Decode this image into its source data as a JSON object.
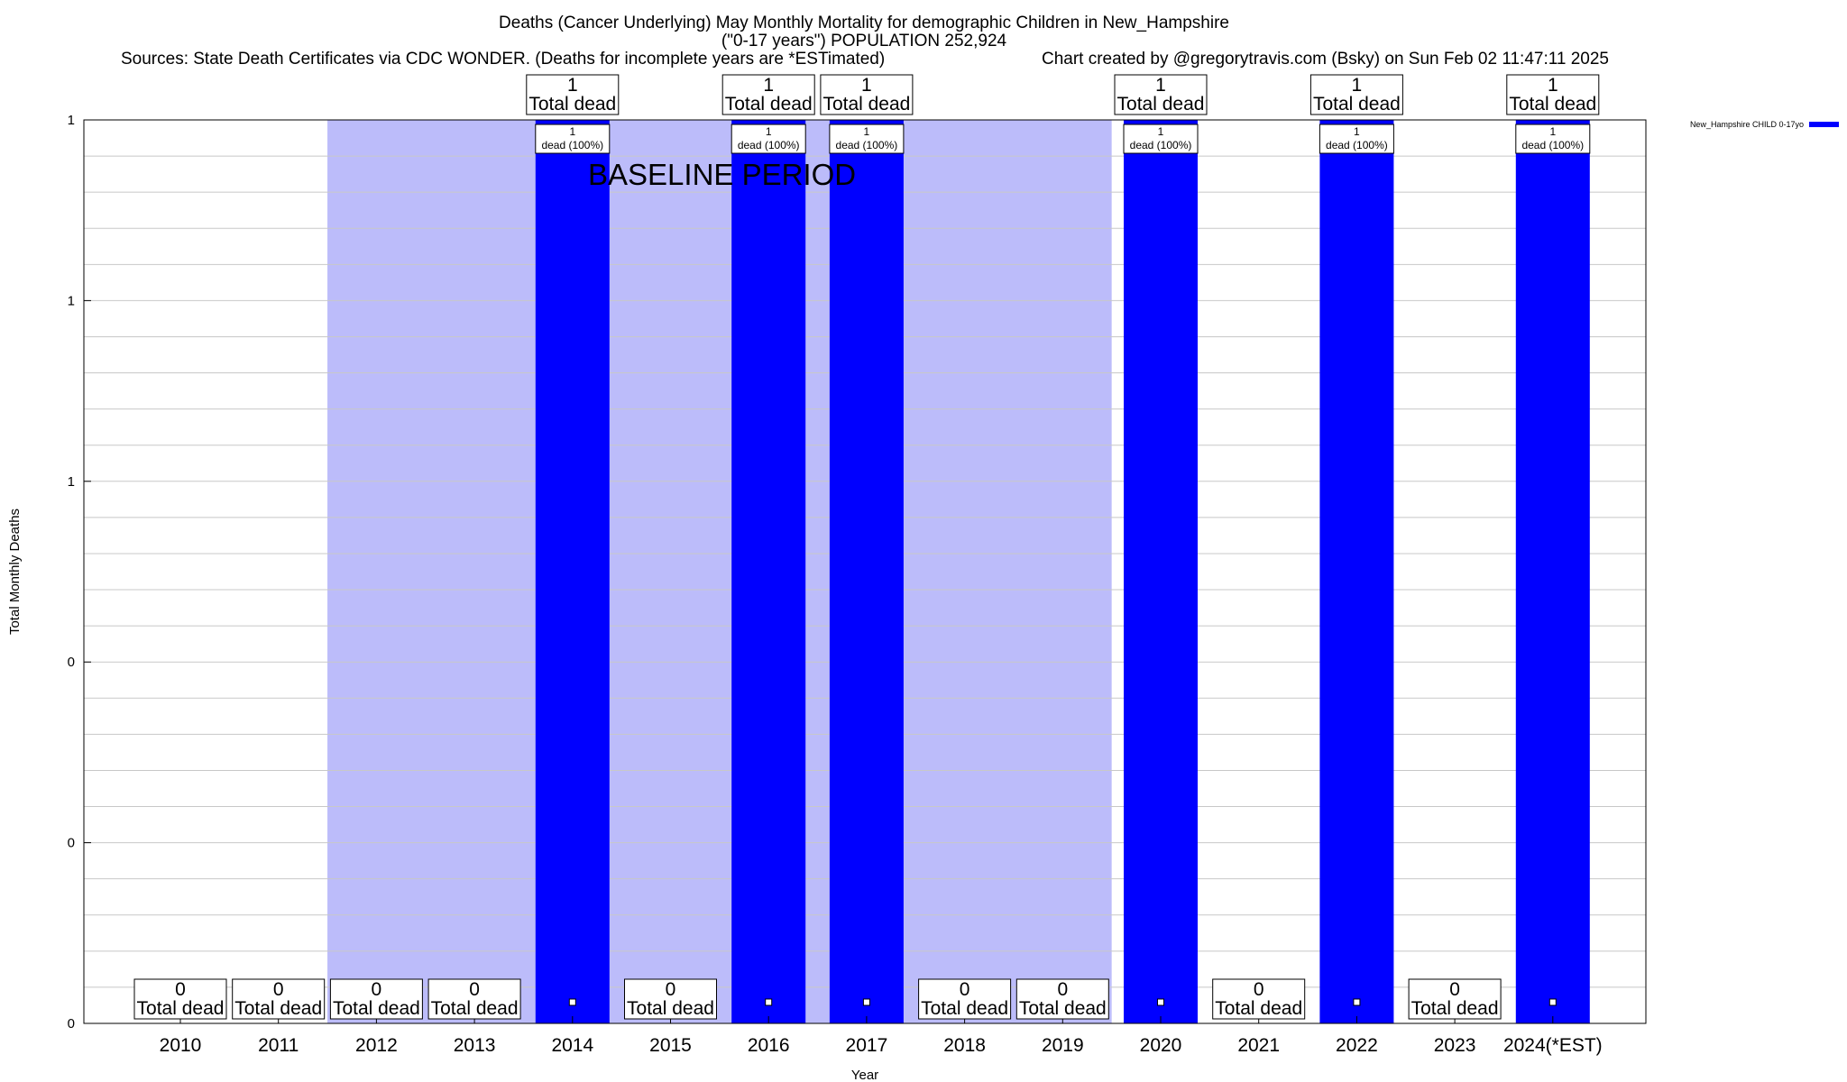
{
  "title": {
    "line1": "Deaths (Cancer Underlying) May Monthly Mortality for demographic Children in New_Hampshire",
    "line2": "(\"0-17 years\") POPULATION 252,924",
    "sources": "Sources: State Death Certificates via CDC WONDER. (Deaths for incomplete years are *ESTimated)",
    "credit": "Chart created by @gregorytravis.com (Bsky) on Sun Feb 02 11:47:11 2025"
  },
  "colors": {
    "bar": "#0000ff",
    "baseline_shade": "#bcbcfa",
    "grid": "#c8c8c8"
  },
  "chart_data": {
    "type": "bar",
    "categories": [
      "2010",
      "2011",
      "2012",
      "2013",
      "2014",
      "2015",
      "2016",
      "2017",
      "2018",
      "2019",
      "2020",
      "2021",
      "2022",
      "2023",
      "2024(*EST)"
    ],
    "series": [
      {
        "name": "New_Hampshire CHILD 0-17yo",
        "values": [
          0,
          0,
          0,
          0,
          1,
          0,
          1,
          1,
          0,
          0,
          1,
          0,
          1,
          0,
          1
        ]
      }
    ],
    "bar_labels": [
      "1\ndead (100%)",
      "1\ndead (100%)",
      "1\ndead (100%)",
      "1\ndead (100%)",
      "1\ndead (100%)",
      "1\ndead (100%)"
    ],
    "total_label": "Total dead",
    "xlabel": "Year",
    "ylabel": "Total Monthly Deaths",
    "ylim": [
      0,
      1
    ],
    "yticks": [
      0,
      0.2,
      0.4,
      0.6,
      0.8,
      1
    ],
    "ytick_labels": [
      "0",
      "0",
      "0",
      "1",
      "1",
      "1"
    ],
    "baseline_period": {
      "label": "BASELINE PERIOD",
      "from": "2012",
      "to": "2019"
    },
    "grid": true,
    "legend_position": "top-right"
  }
}
